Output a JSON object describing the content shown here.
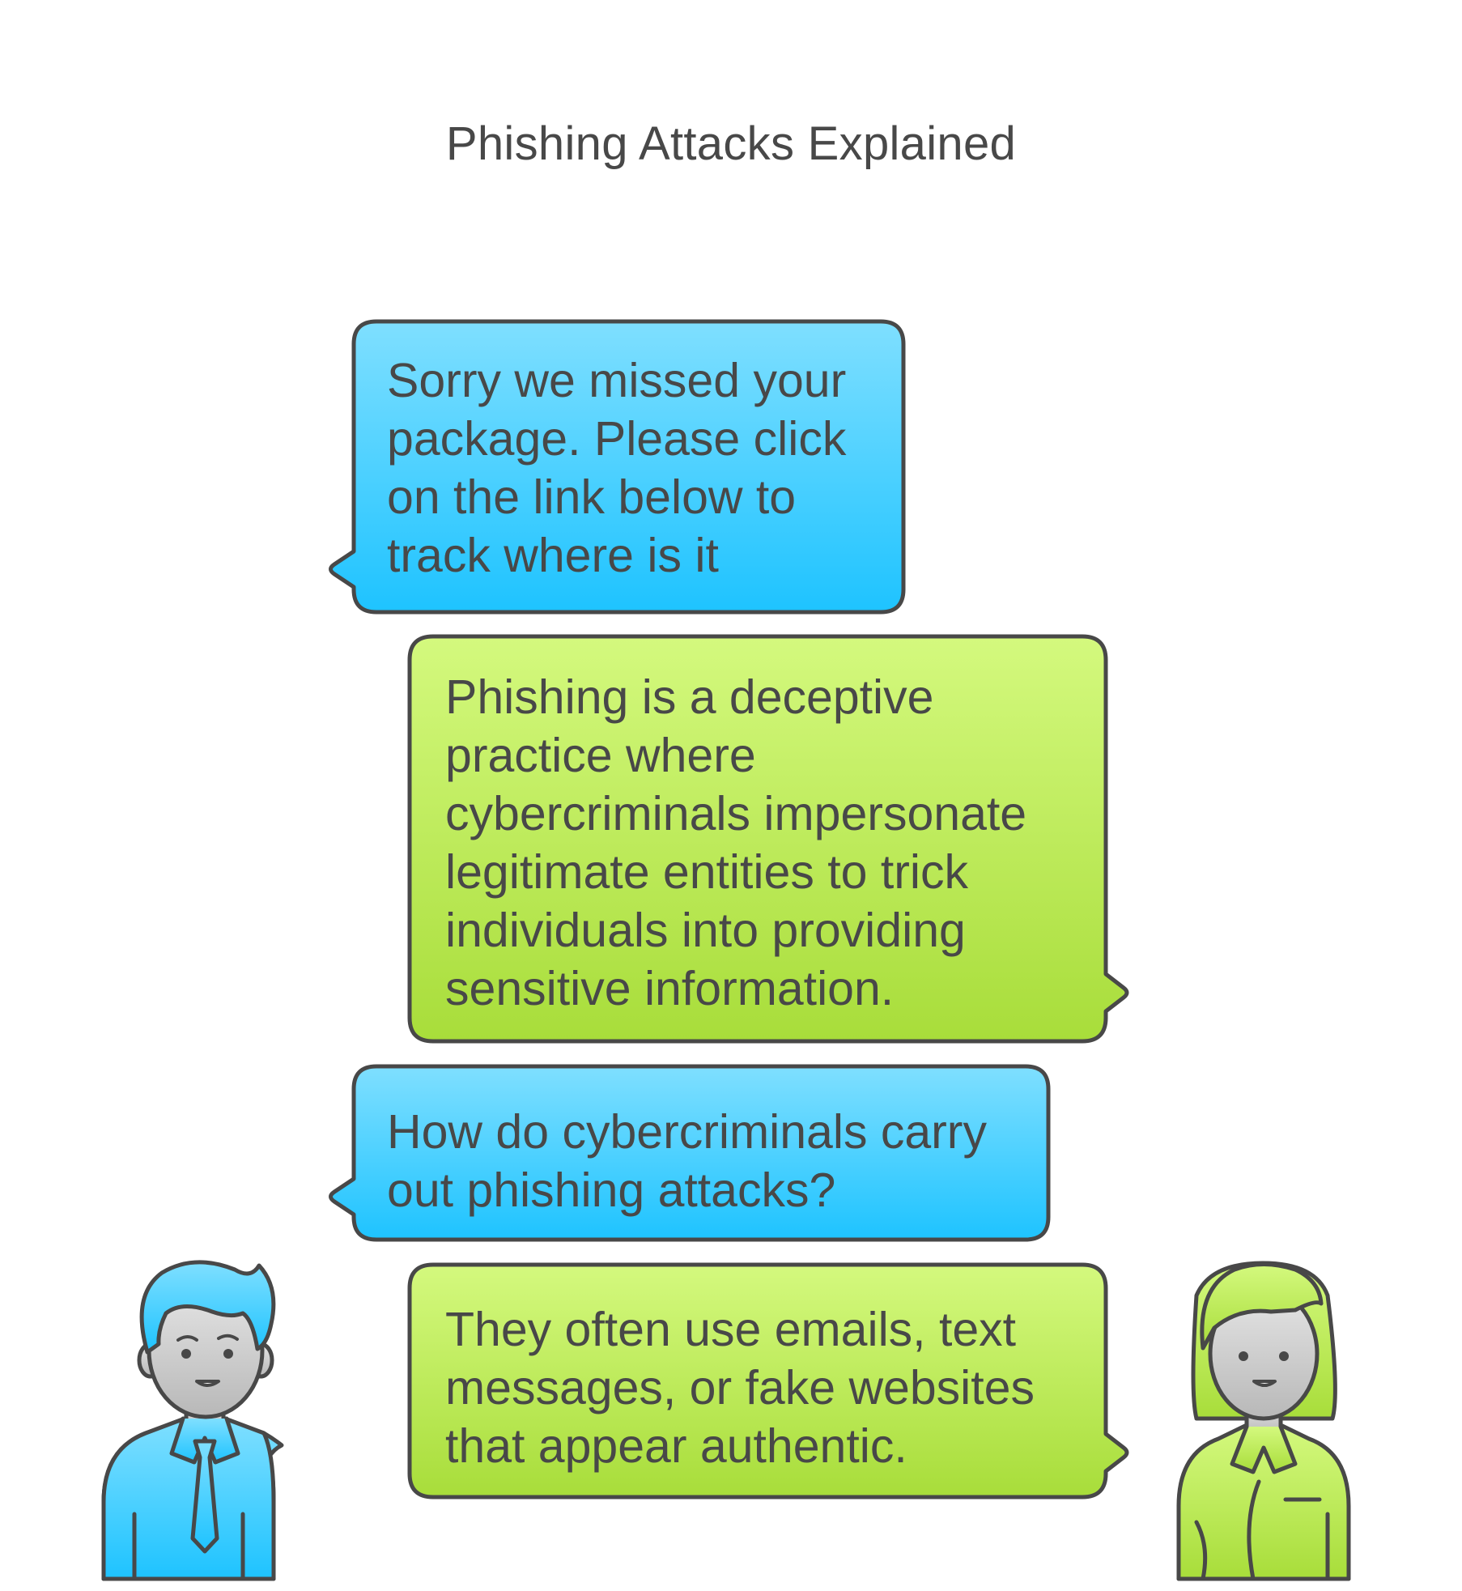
{
  "title": "Phishing Attacks Explained",
  "colors": {
    "blue_top": "#7FDFFF",
    "blue_bottom": "#1EC3FF",
    "green_top": "#D4F97E",
    "green_bottom": "#A8DD3A",
    "outline": "#484848",
    "skin_top": "#E5E5E5",
    "skin_bottom": "#B8B8B8"
  },
  "messages": [
    {
      "speaker": "man",
      "text": "Sorry we missed your\npackage. Please click\non the link below to\ntrack where is it"
    },
    {
      "speaker": "woman",
      "text": "Phishing is a deceptive\npractice where\ncybercriminals impersonate\nlegitimate entities to trick\nindividuals into providing\nsensitive information."
    },
    {
      "speaker": "man",
      "text": "How do cybercriminals carry\nout phishing attacks?"
    },
    {
      "speaker": "woman",
      "text": "They often use emails, text\nmessages, or fake websites\nthat appear authentic."
    }
  ],
  "characters": {
    "left": {
      "icon": "man-avatar-icon"
    },
    "right": {
      "icon": "woman-avatar-icon"
    }
  }
}
